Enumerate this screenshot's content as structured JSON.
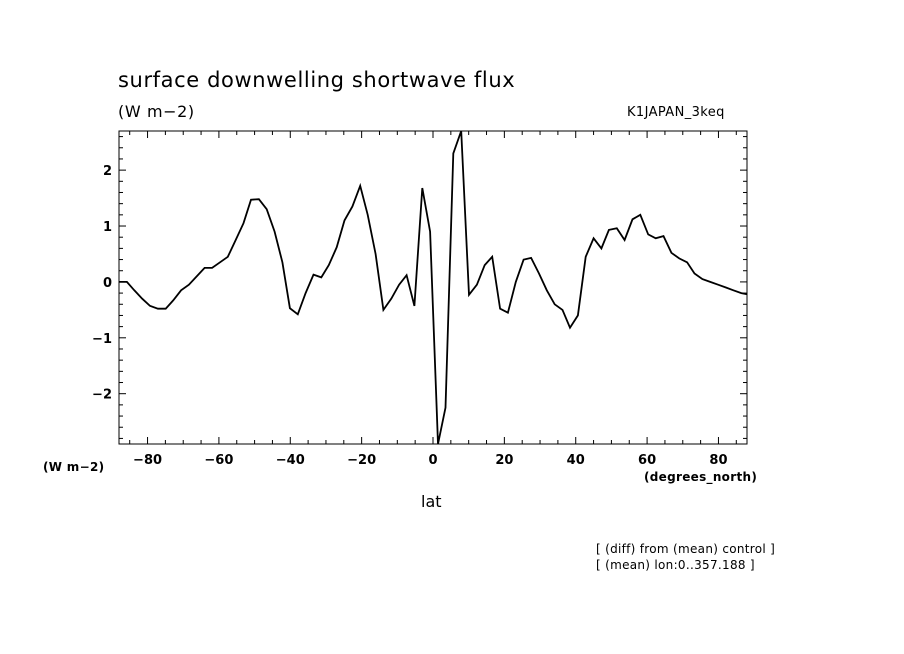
{
  "chart_data": {
    "type": "line",
    "title": "surface downwelling shortwave flux",
    "subtitle": "(W m−2)",
    "run_label": "K1JAPAN_3keq",
    "ylabel_unit": "(W m−2)",
    "xlabel": "lat",
    "xunit": "(degrees_north)",
    "notes": [
      "[ (diff) from (mean) control ]",
      "[ (mean) lon:0..357.188 ]"
    ],
    "xlim": [
      -88,
      88
    ],
    "ylim": [
      -2.9,
      2.7
    ],
    "xticks": [
      -80,
      -60,
      -40,
      -20,
      0,
      20,
      40,
      60,
      80
    ],
    "xtick_labels": [
      "−80",
      "−60",
      "−40",
      "−20",
      "0",
      "20",
      "40",
      "60",
      "80"
    ],
    "yticks": [
      -2,
      -1,
      0,
      1,
      2
    ],
    "ytick_labels": [
      "−2",
      "−1",
      "0",
      "1",
      "2"
    ],
    "grid": false,
    "line_color": "#000000",
    "series": [
      {
        "x": [
          -88,
          -85.8,
          -83.7,
          -81.5,
          -79.3,
          -77.1,
          -74.9,
          -72.8,
          -70.6,
          -68.4,
          -66.2,
          -64,
          -61.9,
          -59.7,
          -57.5,
          -55.3,
          -53.1,
          -51,
          -48.8,
          -46.6,
          -44.4,
          -42.2,
          -40.1,
          -37.9,
          -35.7,
          -33.5,
          -31.3,
          -29.2,
          -27,
          -24.8,
          -22.6,
          -20.4,
          -18.3,
          -16.1,
          -13.9,
          -11.7,
          -9.5,
          -7.4,
          -5.2,
          -3,
          -0.8,
          1.4,
          3.5,
          5.7,
          7.9,
          10.1,
          12.3,
          14.5,
          16.6,
          18.8,
          21,
          23.2,
          25.4,
          27.5,
          29.7,
          31.9,
          34.1,
          36.3,
          38.4,
          40.6,
          42.8,
          45,
          47.2,
          49.3,
          51.5,
          53.7,
          55.9,
          58.1,
          60.3,
          62.4,
          64.6,
          66.8,
          69,
          71.2,
          73.3,
          75.5,
          77.7,
          79.9,
          82.1,
          84.2,
          86.4,
          88
        ],
        "values": [
          0.0,
          -0.0,
          -0.15,
          -0.3,
          -0.43,
          -0.48,
          -0.48,
          -0.33,
          -0.15,
          -0.05,
          0.1,
          0.25,
          0.25,
          0.35,
          0.45,
          0.75,
          1.05,
          1.47,
          1.48,
          1.3,
          0.9,
          0.35,
          -0.47,
          -0.58,
          -0.2,
          0.13,
          0.08,
          0.3,
          0.62,
          1.1,
          1.35,
          1.72,
          1.2,
          0.5,
          -0.5,
          -0.3,
          -0.05,
          0.12,
          -0.43,
          1.68,
          0.9,
          -2.9,
          -2.25,
          2.3,
          2.7,
          -0.23,
          -0.05,
          0.3,
          0.45,
          -0.48,
          -0.55,
          0.0,
          0.4,
          0.43,
          0.15,
          -0.15,
          -0.4,
          -0.5,
          -0.82,
          -0.6,
          0.45,
          0.78,
          0.6,
          0.93,
          0.96,
          0.75,
          1.12,
          1.2,
          0.85,
          0.78,
          0.82,
          0.52,
          0.42,
          0.35,
          0.15,
          0.05,
          0.0,
          -0.05,
          -0.1,
          -0.15,
          -0.2,
          -0.22
        ]
      }
    ]
  }
}
